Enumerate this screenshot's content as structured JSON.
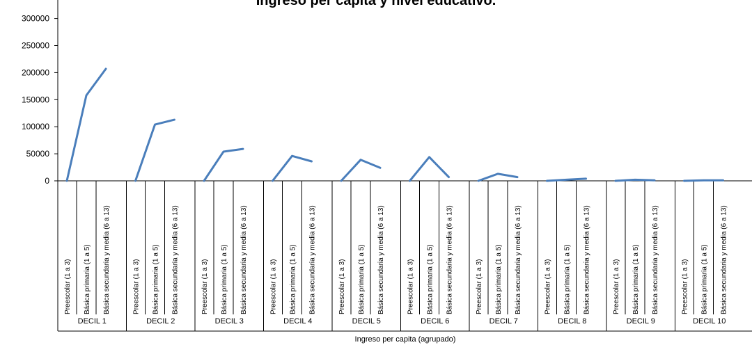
{
  "chart_data": {
    "type": "line",
    "title": "Ingreso per capita y nivel educativo.",
    "xlabel": "Ingreso per capita (agrupado)",
    "ylabel": "",
    "ylim": [
      0,
      300000
    ],
    "yticks": [
      0,
      50000,
      100000,
      150000,
      200000,
      250000,
      300000
    ],
    "ytick_labels": [
      "0",
      "50000",
      "100000",
      "150000",
      "200000",
      "250000",
      "300000"
    ],
    "grid": false,
    "legend": "none",
    "line_color": "#4a7ebb",
    "groups": [
      {
        "label": "DECIL 1",
        "categories": [
          "Preescolar (1 a 3)",
          "Básica primaria (1 a 5)",
          "Básica secundaria y media (6 a 13)"
        ],
        "values": [
          0,
          158000,
          207000
        ]
      },
      {
        "label": "DECIL 2",
        "categories": [
          "Preescolar (1 a 3)",
          "Básica primaria (1 a 5)",
          "Básica secundaria y media (6 a 13)"
        ],
        "values": [
          0,
          104000,
          113000
        ]
      },
      {
        "label": "DECIL 3",
        "categories": [
          "Preescolar (1 a 3)",
          "Básica primaria (1 a 5)",
          "Básica secundaria y media (6 a 13)"
        ],
        "values": [
          0,
          54000,
          59000
        ]
      },
      {
        "label": "DECIL 4",
        "categories": [
          "Preescolar (1 a 3)",
          "Básica primaria (1 a 5)",
          "Básica secundaria y media (6 a 13)"
        ],
        "values": [
          0,
          46000,
          36000
        ]
      },
      {
        "label": "DECIL 5",
        "categories": [
          "Preescolar (1 a 3)",
          "Básica primaria (1 a 5)",
          "Básica secundaria y media (6 a 13)"
        ],
        "values": [
          0,
          39000,
          24000
        ]
      },
      {
        "label": "DECIL 6",
        "categories": [
          "Preescolar (1 a 3)",
          "Básica primaria (1 a 5)",
          "Básica secundaria y media (6 a 13)"
        ],
        "values": [
          0,
          44000,
          7000
        ]
      },
      {
        "label": "DECIL 7",
        "categories": [
          "Preescolar (1 a 3)",
          "Básica primaria (1 a 5)",
          "Básica secundaria y media (6 a 13)"
        ],
        "values": [
          0,
          13000,
          7000
        ]
      },
      {
        "label": "DECIL 8",
        "categories": [
          "Preescolar (1 a 3)",
          "Básica primaria (1 a 5)",
          "Básica secundaria y media (6 a 13)"
        ],
        "values": [
          0,
          2000,
          4000
        ]
      },
      {
        "label": "DECIL 9",
        "categories": [
          "Preescolar (1 a 3)",
          "Básica primaria (1 a 5)",
          "Básica secundaria y media (6 a 13)"
        ],
        "values": [
          0,
          2000,
          1000
        ]
      },
      {
        "label": "DECIL 10",
        "categories": [
          "Preescolar (1 a 3)",
          "Básica primaria (1 a 5)",
          "Básica secundaria y media (6 a 13)"
        ],
        "values": [
          0,
          1000,
          1000
        ]
      }
    ]
  }
}
